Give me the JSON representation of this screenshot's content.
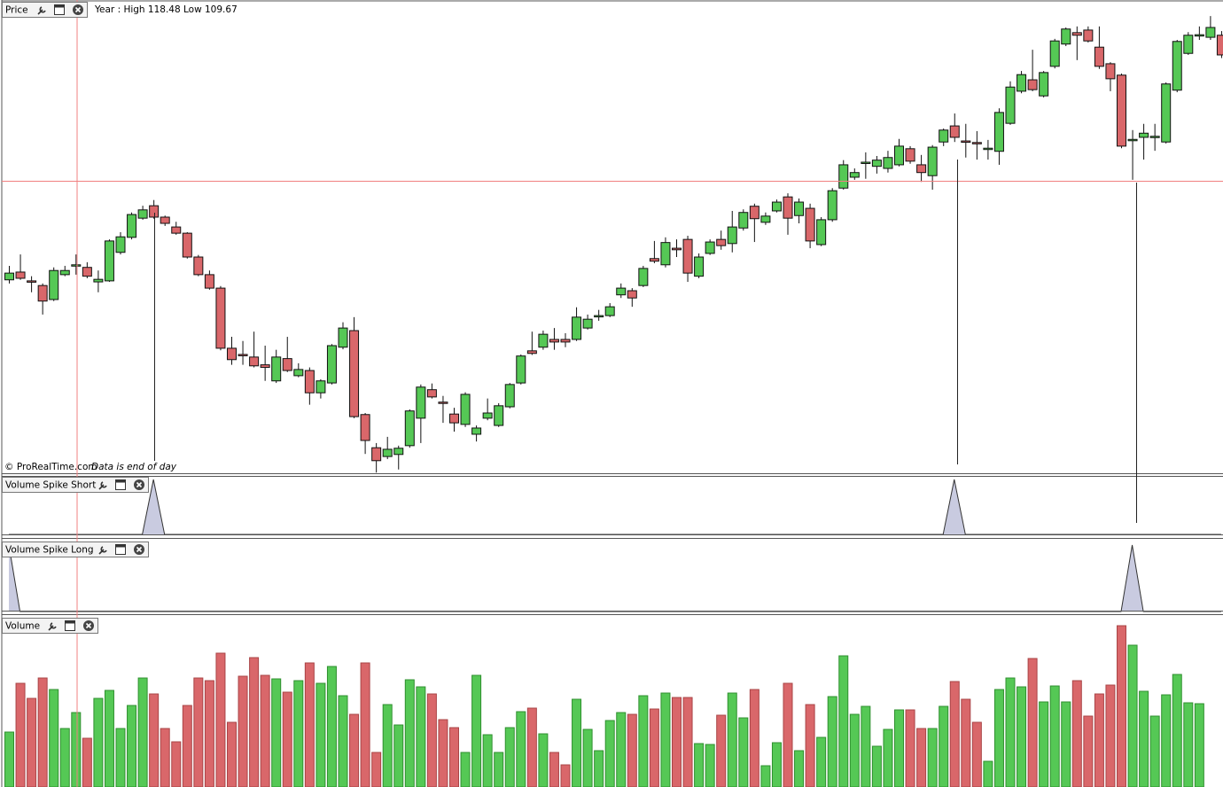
{
  "chart_data": [
    {
      "type": "candlestick",
      "title": "Price",
      "subtitle": "Year : High 118.48 Low 109.67",
      "source": "© ProRealTime.com",
      "note": "Data is end of day",
      "ylim": [
        109.64,
        118.79
      ],
      "up_color": "#55c855",
      "down_color": "#d9676a",
      "open": [
        113.39,
        113.54,
        113.37,
        113.28,
        113.01,
        113.49,
        113.66,
        113.63,
        113.35,
        113.37,
        113.92,
        114.21,
        114.58,
        114.82,
        114.6,
        114.41,
        114.29,
        113.83,
        113.49,
        113.23,
        112.07,
        111.95,
        111.9,
        111.75,
        111.44,
        111.87,
        111.54,
        111.64,
        111.21,
        111.4,
        112.09,
        112.41,
        110.79,
        110.15,
        109.98,
        110.02,
        110.19,
        110.72,
        111.27,
        111.03,
        110.8,
        110.6,
        110.41,
        110.72,
        110.58,
        110.94,
        111.4,
        112.02,
        112.09,
        112.24,
        112.24,
        112.24,
        112.46,
        112.69,
        112.7,
        113.1,
        113.18,
        113.28,
        113.8,
        113.68,
        114.0,
        114.17,
        113.46,
        113.9,
        114.17,
        114.09,
        114.39,
        114.81,
        114.5,
        114.72,
        114.99,
        114.63,
        114.77,
        114.07,
        114.55,
        115.16,
        115.37,
        115.64,
        115.58,
        115.54,
        115.61,
        115.92,
        115.61,
        115.4,
        116.05,
        116.36,
        116.07,
        116.04,
        115.92,
        115.87,
        116.41,
        117.03,
        117.25,
        116.94,
        117.51,
        117.94,
        118.16,
        118.21,
        117.88,
        117.56,
        117.34,
        116.09,
        116.14,
        116.14,
        116.05,
        117.05,
        117.76,
        118.11,
        118.07,
        118.11
      ],
      "high": [
        113.66,
        113.88,
        113.46,
        113.32,
        113.63,
        113.66,
        113.88,
        113.73,
        113.57,
        114.17,
        114.31,
        114.69,
        114.82,
        114.93,
        114.63,
        114.51,
        114.31,
        113.87,
        113.57,
        113.27,
        112.29,
        112.21,
        112.39,
        112.12,
        112.04,
        112.29,
        111.78,
        111.7,
        111.47,
        112.15,
        112.57,
        112.67,
        110.82,
        110.24,
        110.36,
        110.19,
        110.89,
        111.37,
        111.39,
        111.15,
        110.92,
        111.22,
        110.58,
        111.1,
        111.01,
        111.4,
        111.95,
        112.39,
        112.41,
        112.46,
        112.36,
        112.86,
        112.72,
        112.81,
        112.94,
        113.32,
        113.23,
        113.66,
        114.14,
        114.21,
        114.17,
        114.24,
        113.9,
        114.17,
        114.34,
        114.72,
        114.75,
        114.86,
        114.69,
        114.94,
        115.06,
        114.96,
        114.86,
        114.6,
        115.16,
        115.7,
        115.54,
        115.85,
        115.78,
        115.88,
        116.11,
        115.97,
        115.8,
        115.99,
        116.31,
        116.6,
        116.4,
        116.26,
        116.09,
        116.7,
        117.22,
        117.42,
        117.83,
        117.42,
        118.04,
        118.26,
        118.28,
        118.28,
        118.28,
        117.59,
        117.37,
        116.28,
        116.4,
        116.4,
        117.2,
        118.02,
        118.17,
        118.28,
        118.48,
        118.19
      ],
      "low": [
        113.32,
        113.39,
        113.15,
        112.72,
        112.98,
        113.46,
        113.49,
        113.42,
        113.15,
        113.35,
        113.88,
        114.17,
        114.55,
        114.57,
        114.43,
        114.26,
        113.8,
        113.46,
        113.2,
        112.03,
        111.75,
        111.75,
        111.7,
        111.44,
        111.4,
        111.61,
        111.51,
        110.98,
        111.1,
        111.37,
        112.05,
        110.72,
        110.03,
        109.67,
        109.93,
        109.73,
        110.15,
        110.24,
        111.1,
        110.63,
        110.46,
        110.55,
        110.27,
        110.68,
        110.55,
        110.91,
        111.37,
        111.94,
        112.04,
        112.04,
        112.09,
        112.21,
        112.43,
        112.6,
        112.67,
        113.04,
        112.87,
        113.25,
        113.71,
        113.63,
        113.83,
        113.35,
        113.42,
        113.87,
        113.97,
        113.92,
        114.34,
        114.12,
        114.45,
        114.69,
        114.26,
        114.48,
        114.0,
        114.04,
        114.51,
        115.13,
        115.32,
        115.34,
        115.44,
        115.46,
        115.58,
        115.63,
        115.28,
        115.13,
        115.97,
        116.05,
        115.75,
        115.71,
        115.71,
        115.61,
        116.38,
        116.99,
        117.03,
        116.91,
        117.47,
        117.9,
        117.63,
        117.97,
        117.46,
        117.03,
        115.93,
        115.32,
        115.71,
        115.88,
        116.02,
        117.01,
        117.73,
        118.02,
        118.02,
        117.67
      ],
      "close": [
        113.52,
        113.42,
        113.35,
        112.98,
        113.57,
        113.57,
        113.68,
        113.46,
        113.4,
        114.14,
        114.22,
        114.65,
        114.74,
        114.6,
        114.48,
        114.29,
        113.83,
        113.49,
        113.23,
        112.07,
        111.85,
        111.94,
        111.73,
        111.7,
        111.9,
        111.64,
        111.66,
        111.21,
        111.44,
        112.12,
        112.46,
        110.75,
        110.29,
        109.9,
        110.12,
        110.14,
        110.86,
        111.32,
        111.13,
        111.01,
        110.63,
        111.18,
        110.53,
        110.82,
        110.96,
        111.37,
        111.92,
        111.97,
        112.34,
        112.19,
        112.19,
        112.67,
        112.63,
        112.7,
        112.87,
        113.23,
        113.04,
        113.61,
        113.75,
        114.11,
        113.97,
        113.52,
        113.83,
        114.12,
        114.05,
        114.41,
        114.69,
        114.57,
        114.62,
        114.89,
        114.58,
        114.89,
        114.14,
        114.55,
        115.11,
        115.61,
        115.46,
        115.66,
        115.7,
        115.75,
        115.97,
        115.68,
        115.46,
        115.95,
        116.28,
        116.14,
        116.05,
        116.02,
        115.93,
        116.62,
        117.11,
        117.35,
        117.06,
        117.39,
        118.0,
        118.23,
        118.11,
        118.0,
        117.51,
        117.27,
        115.97,
        116.1,
        116.22,
        116.16,
        117.17,
        117.99,
        118.11,
        118.12,
        118.26,
        117.73
      ]
    },
    {
      "type": "spike",
      "title": "Volume Spike Short",
      "ylim": [
        0,
        1
      ],
      "color": "#c9cbe0",
      "values": [
        0,
        0,
        0,
        0,
        0,
        0,
        0,
        0,
        0,
        0,
        0,
        0,
        0,
        1,
        0,
        0,
        0,
        0,
        0,
        0,
        0,
        0,
        0,
        0,
        0,
        0,
        0,
        0,
        0,
        0,
        0,
        0,
        0,
        0,
        0,
        0,
        0,
        0,
        0,
        0,
        0,
        0,
        0,
        0,
        0,
        0,
        0,
        0,
        0,
        0,
        0,
        0,
        0,
        0,
        0,
        0,
        0,
        0,
        0,
        0,
        0,
        0,
        0,
        0,
        0,
        0,
        0,
        0,
        0,
        0,
        0,
        0,
        0,
        0,
        0,
        0,
        0,
        0,
        0,
        0,
        0,
        0,
        0,
        0,
        0,
        1,
        0,
        0,
        0,
        0,
        0,
        0,
        0,
        0,
        0,
        0,
        0,
        0,
        0,
        0,
        0,
        0,
        0,
        0,
        0,
        0,
        0,
        0,
        0,
        0
      ]
    },
    {
      "type": "spike",
      "title": "Volume Spike Long",
      "ylim": [
        0,
        1
      ],
      "color": "#c9cbe0",
      "values": [
        1,
        0,
        0,
        0,
        0,
        0,
        0,
        0,
        0,
        0,
        0,
        0,
        0,
        0,
        0,
        0,
        0,
        0,
        0,
        0,
        0,
        0,
        0,
        0,
        0,
        0,
        0,
        0,
        0,
        0,
        0,
        0,
        0,
        0,
        0,
        0,
        0,
        0,
        0,
        0,
        0,
        0,
        0,
        0,
        0,
        0,
        0,
        0,
        0,
        0,
        0,
        0,
        0,
        0,
        0,
        0,
        0,
        0,
        0,
        0,
        0,
        0,
        0,
        0,
        0,
        0,
        0,
        0,
        0,
        0,
        0,
        0,
        0,
        0,
        0,
        0,
        0,
        0,
        0,
        0,
        0,
        0,
        0,
        0,
        0,
        0,
        0,
        0,
        0,
        0,
        0,
        0,
        0,
        0,
        0,
        0,
        0,
        0,
        0,
        0,
        0,
        1,
        0,
        0,
        0,
        0,
        0,
        0,
        0,
        0
      ]
    },
    {
      "type": "bar",
      "title": "Volume",
      "ylim": [
        0,
        190
      ],
      "values": [
        62,
        117,
        100,
        123,
        110,
        66,
        84,
        55,
        100,
        109,
        66,
        92,
        123,
        105,
        66,
        51,
        92,
        123,
        120,
        151,
        73,
        125,
        146,
        126,
        122,
        107,
        120,
        140,
        117,
        136,
        103,
        82,
        140,
        39,
        93,
        70,
        121,
        113,
        105,
        76,
        67,
        39,
        126,
        59,
        39,
        67,
        85,
        89,
        60,
        39,
        25,
        99,
        65,
        41,
        75,
        84,
        82,
        103,
        88,
        106,
        101,
        101,
        49,
        48,
        81,
        106,
        78,
        110,
        24,
        50,
        117,
        41,
        93,
        56,
        102,
        148,
        82,
        91,
        46,
        65,
        87,
        87,
        66,
        66,
        91,
        119,
        99,
        73,
        29,
        110,
        123,
        113,
        145,
        96,
        114,
        96,
        120,
        80,
        105,
        115,
        182,
        160,
        108,
        80,
        104,
        127,
        95,
        94,
        null,
        null
      ]
    }
  ]
}
